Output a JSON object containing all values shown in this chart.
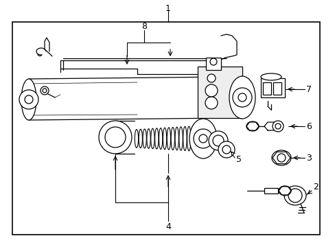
{
  "background_color": "#ffffff",
  "border_color": "#000000",
  "line_color": "#000000",
  "label_color": "#000000",
  "fig_width": 4.89,
  "fig_height": 3.6,
  "dpi": 100
}
